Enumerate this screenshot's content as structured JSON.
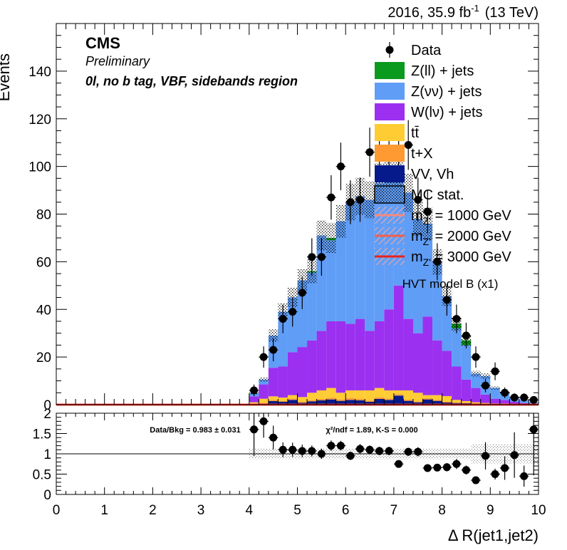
{
  "header": {
    "lumi_label": "2016, 35.9 fb",
    "lumi_exp": "-1",
    "energy_label": "(13 TeV)",
    "experiment": "CMS",
    "status": "Preliminary",
    "region": "0l, no b tag, VBF, sidebands region"
  },
  "legend": {
    "entries": [
      {
        "label": "Data",
        "kind": "marker",
        "color": "#000000"
      },
      {
        "label": "Z(ll) + jets",
        "kind": "box",
        "color": "#0a9a1e"
      },
      {
        "label": "Z(νν) + jets",
        "kind": "box",
        "color": "#609df6"
      },
      {
        "label": "W(lν) + jets",
        "kind": "box",
        "color": "#9b30f0"
      },
      {
        "label": "tt̄",
        "kind": "box",
        "color": "#ffcc33"
      },
      {
        "label": "t+X",
        "kind": "box",
        "color": "#ff9a33"
      },
      {
        "label": "VV, Vh",
        "kind": "box",
        "color": "#061a8c"
      },
      {
        "label": "MC stat.",
        "kind": "hatch",
        "color": "#000000"
      },
      {
        "label": "m",
        "sub": "Z'",
        "rest": " = 1000 GeV",
        "kind": "line",
        "color": "#f58a80"
      },
      {
        "label": "m",
        "sub": "Z'",
        "rest": " = 2000 GeV",
        "kind": "line",
        "color": "#f0604f"
      },
      {
        "label": "m",
        "sub": "Z'",
        "rest": " = 3000 GeV",
        "kind": "line",
        "color": "#e8221c"
      }
    ],
    "model_note": "HVT model B (x1)"
  },
  "chart_data": [
    {
      "type": "bar",
      "stacked": true,
      "ylabel": "Events",
      "xlim": [
        0,
        10
      ],
      "ylim": [
        0,
        160
      ],
      "yticks": [
        0,
        20,
        40,
        60,
        80,
        100,
        120,
        140
      ],
      "bin_width": 0.2,
      "x": [
        4.1,
        4.3,
        4.5,
        4.7,
        4.9,
        5.1,
        5.3,
        5.5,
        5.7,
        5.9,
        6.1,
        6.3,
        6.5,
        6.7,
        6.9,
        7.1,
        7.3,
        7.5,
        7.7,
        7.9,
        8.1,
        8.3,
        8.5,
        8.7,
        8.9,
        9.1,
        9.3,
        9.5,
        9.7,
        9.9
      ],
      "series": [
        {
          "name": "VV, Vh",
          "color": "#061a8c",
          "values": [
            0.3,
            0.5,
            1.5,
            1.2,
            2.0,
            0.8,
            1.4,
            1.8,
            2.2,
            1.6,
            2.0,
            1.8,
            1.2,
            2.4,
            2.0,
            3.8,
            1.6,
            1.0,
            2.2,
            1.6,
            0.9,
            0.7,
            0.6,
            0.4,
            0.3,
            0.2,
            0.2,
            0.1,
            0.1,
            0.1
          ]
        },
        {
          "name": "t+X",
          "color": "#ff9a33",
          "values": [
            0.2,
            0.3,
            0.5,
            0.4,
            0.6,
            0.4,
            0.5,
            0.6,
            0.7,
            0.6,
            0.8,
            0.6,
            0.5,
            0.7,
            0.6,
            0.6,
            0.5,
            0.4,
            0.5,
            0.4,
            0.3,
            0.3,
            0.2,
            0.2,
            0.1,
            0.1,
            0.1,
            0.1,
            0.0,
            0.0
          ]
        },
        {
          "name": "tt̄",
          "color": "#ffcc33",
          "values": [
            0.5,
            1.7,
            1.5,
            1.4,
            1.4,
            2.0,
            3.1,
            3.6,
            4.1,
            2.8,
            3.2,
            3.6,
            4.3,
            3.9,
            3.4,
            1.6,
            3.9,
            3.6,
            1.3,
            2.0,
            2.4,
            1.0,
            0.7,
            0.4,
            0.3,
            0.2,
            0.2,
            0.1,
            0.1,
            0.1
          ]
        },
        {
          "name": "W(lν) + jets",
          "color": "#9b30f0",
          "values": [
            2.5,
            6.0,
            12.0,
            13.0,
            18.0,
            21.0,
            22.0,
            25.0,
            28.0,
            30.0,
            28.0,
            30.0,
            25.0,
            28.0,
            34.0,
            44.0,
            30.0,
            25.0,
            33.0,
            23.0,
            19.0,
            14.0,
            9.0,
            6.0,
            3.5,
            2.0,
            1.5,
            0.9,
            0.5,
            0.3
          ]
        },
        {
          "name": "Z(νν) + jets",
          "color": "#609df6",
          "values": [
            1.3,
            2.0,
            13.5,
            23.0,
            23.0,
            28.0,
            28.5,
            40.0,
            34.0,
            42.0,
            51.0,
            51.5,
            55.0,
            58.0,
            60.0,
            50.0,
            53.0,
            48.0,
            39.0,
            33.0,
            23.0,
            16.0,
            14.5,
            6.0,
            7.8,
            4.5,
            3.0,
            1.9,
            1.3,
            0.5
          ]
        },
        {
          "name": "Z(ll) + jets",
          "color": "#0a9a1e",
          "values": [
            0.0,
            0.0,
            0.0,
            0.0,
            0.0,
            0.0,
            0.5,
            0.0,
            1.0,
            0.0,
            0.0,
            0.0,
            0.0,
            0.0,
            0.0,
            0.0,
            0.0,
            0.0,
            0.0,
            0.0,
            0.0,
            2.0,
            2.0,
            0.0,
            0.0,
            0.0,
            0.0,
            0.0,
            0.0,
            0.0
          ]
        }
      ],
      "mc_stat_rel_unc": 0.09,
      "data": {
        "name": "Data",
        "x": [
          4.1,
          4.3,
          4.5,
          4.7,
          4.9,
          5.1,
          5.3,
          5.5,
          5.7,
          5.9,
          6.1,
          6.3,
          6.5,
          6.7,
          6.9,
          7.1,
          7.3,
          7.5,
          7.7,
          7.9,
          8.1,
          8.3,
          8.5,
          8.7,
          8.9,
          9.1,
          9.3,
          9.5,
          9.7,
          9.9
        ],
        "y": [
          6,
          20,
          23,
          36,
          39,
          47,
          62,
          62,
          87,
          100,
          85,
          86,
          106,
          107,
          104,
          105,
          109,
          86,
          81,
          60,
          44,
          36,
          29,
          20,
          8,
          14,
          5,
          3,
          3,
          2
        ]
      },
      "signal_lines": [
        {
          "name": "mZ' = 1000 GeV",
          "color": "#f58a80",
          "value": 0
        },
        {
          "name": "mZ' = 2000 GeV",
          "color": "#f0604f",
          "value": 0
        },
        {
          "name": "mZ' = 3000 GeV",
          "color": "#e8221c",
          "value": 0
        }
      ]
    },
    {
      "type": "scatter",
      "xlabel": "Δ R(jet1,jet2)",
      "xlim": [
        0,
        10
      ],
      "ylim": [
        0,
        2
      ],
      "yticks": [
        0,
        0.5,
        1,
        1.5,
        2
      ],
      "ytick_labels": [
        "0",
        "0.5",
        "1",
        "1.5",
        "2"
      ],
      "xticks": [
        0,
        1,
        2,
        3,
        4,
        5,
        6,
        7,
        8,
        9,
        10
      ],
      "reference_line": 1,
      "stat_text": "Data/Bkg = 0.983 ± 0.031",
      "chi2_text": "χ²/ndf = 1.89,   K-S = 0.000",
      "x": [
        4.1,
        4.3,
        4.5,
        4.7,
        4.9,
        5.1,
        5.3,
        5.5,
        5.7,
        5.9,
        6.1,
        6.3,
        6.5,
        6.7,
        6.9,
        7.1,
        7.3,
        7.5,
        7.7,
        7.9,
        8.1,
        8.3,
        8.5,
        8.7,
        8.9,
        9.1,
        9.3,
        9.5,
        9.7,
        9.9
      ],
      "y": [
        1.6,
        1.8,
        1.4,
        1.1,
        1.1,
        1.07,
        1.07,
        1.0,
        1.2,
        1.2,
        0.95,
        1.12,
        1.1,
        1.07,
        1.07,
        0.75,
        1.05,
        1.05,
        0.65,
        0.66,
        0.67,
        0.75,
        0.6,
        0.35,
        0.95,
        0.5,
        0.65,
        0.97,
        0.45,
        1.6
      ]
    }
  ]
}
